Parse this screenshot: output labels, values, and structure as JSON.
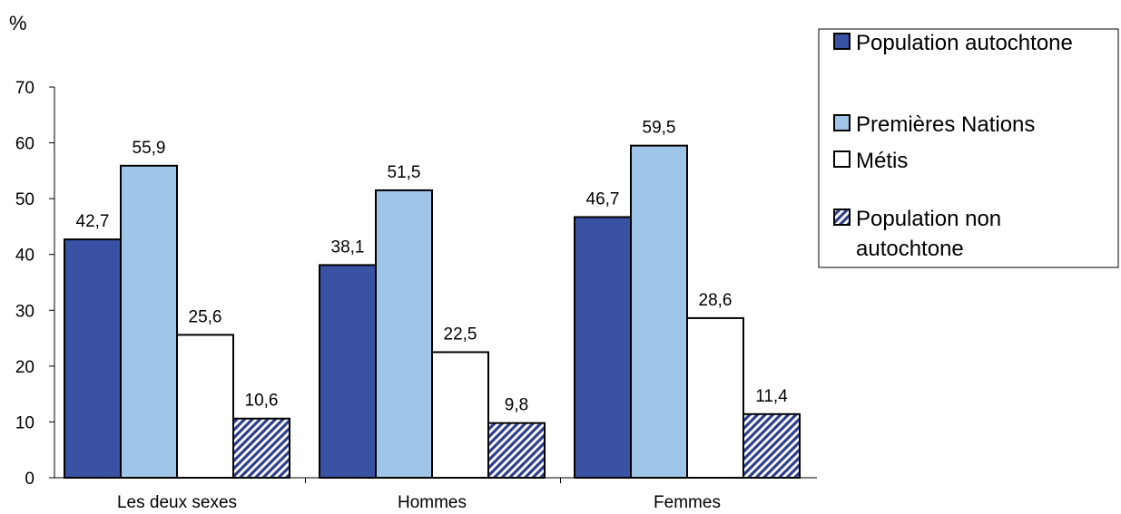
{
  "chart_data": {
    "type": "bar",
    "ylabel": "%",
    "ylim": [
      0,
      70
    ],
    "yticks": [
      0,
      10,
      20,
      30,
      40,
      50,
      60,
      70
    ],
    "categories": [
      "Les deux sexes",
      "Hommes",
      "Femmes"
    ],
    "series": [
      {
        "name": "Population autochtone",
        "values": [
          42.7,
          38.1,
          46.7
        ],
        "labels": [
          "42,7",
          "38,1",
          "46,7"
        ],
        "color": "#3952a4",
        "pattern": "solid"
      },
      {
        "name": "Premières Nations",
        "values": [
          55.9,
          51.5,
          59.5
        ],
        "labels": [
          "55,9",
          "51,5",
          "59,5"
        ],
        "color": "#9fc6e8",
        "pattern": "solid"
      },
      {
        "name": "Métis",
        "values": [
          25.6,
          22.5,
          28.6
        ],
        "labels": [
          "25,6",
          "22,5",
          "28,6"
        ],
        "color": "#ffffff",
        "pattern": "solid"
      },
      {
        "name": "Population non autochtone",
        "legend_lines": [
          "Population non",
          "autochtone"
        ],
        "values": [
          10.6,
          9.8,
          11.4
        ],
        "labels": [
          "10,6",
          "9,8",
          "11,4"
        ],
        "color": "#2e3f8f",
        "pattern": "hatch"
      }
    ],
    "grid": false,
    "legend_position": "top-right"
  }
}
